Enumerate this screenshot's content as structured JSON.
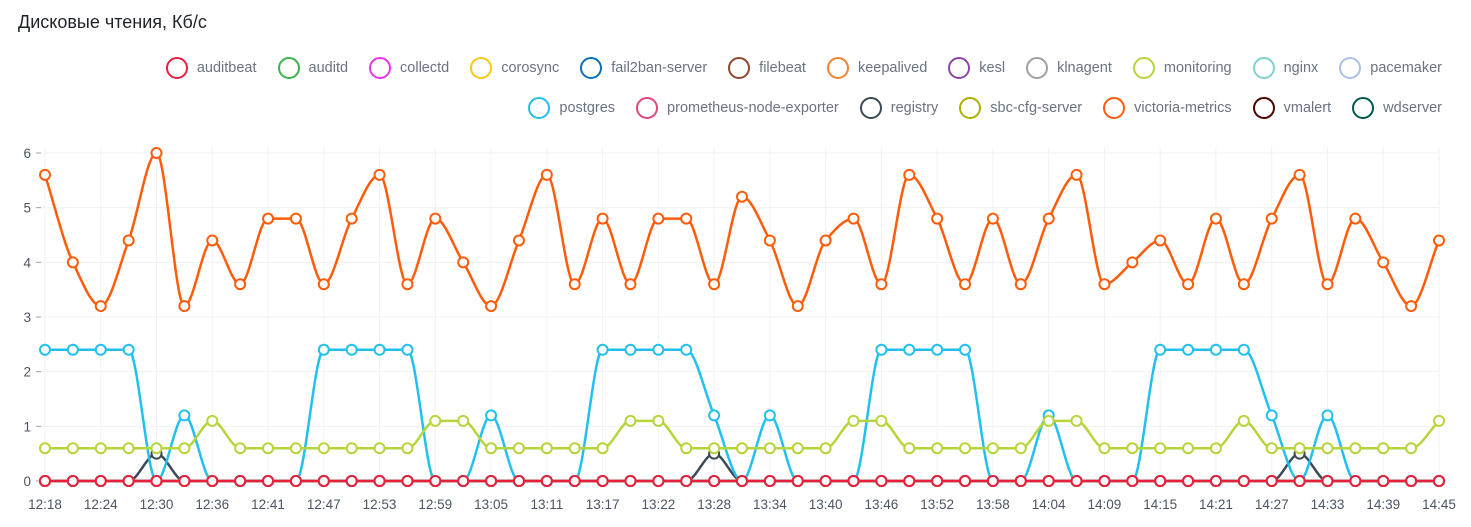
{
  "chart_data": {
    "type": "line",
    "title": "Дисковые чтения, Кб/с",
    "xlabel": "",
    "ylabel": "",
    "ylim": [
      0,
      6
    ],
    "y_ticks": [
      "0",
      "1",
      "2",
      "3",
      "4",
      "5",
      "6"
    ],
    "x_tick_labels": [
      "12:18",
      "12:24",
      "12:30",
      "12:36",
      "12:41",
      "12:47",
      "12:53",
      "12:59",
      "13:05",
      "13:11",
      "13:17",
      "13:22",
      "13:28",
      "13:34",
      "13:40",
      "13:46",
      "13:52",
      "13:58",
      "14:04",
      "14:09",
      "14:15",
      "14:21",
      "14:27",
      "14:33",
      "14:39",
      "14:45"
    ],
    "points_per_series": 51,
    "grid": true,
    "legend_position": "top-right",
    "series": [
      {
        "name": "auditbeat",
        "color": "#e8203c",
        "values": "zeros"
      },
      {
        "name": "auditd",
        "color": "#3cb44b",
        "values": "zeros"
      },
      {
        "name": "collectd",
        "color": "#f032e6",
        "values": "zeros"
      },
      {
        "name": "corosync",
        "color": "#ffc61a",
        "values": "zeros"
      },
      {
        "name": "fail2ban-server",
        "color": "#0a72c4",
        "values": "zeros"
      },
      {
        "name": "filebeat",
        "color": "#8a4b2f",
        "values": "zeros"
      },
      {
        "name": "keepalived",
        "color": "#f58231",
        "values": "zeros"
      },
      {
        "name": "kesl",
        "color": "#8e44ad",
        "values": "zeros"
      },
      {
        "name": "klnagent",
        "color": "#a0a0a0",
        "values": "zeros"
      },
      {
        "name": "monitoring",
        "color": "#b5d53a",
        "values": [
          0.6,
          0.6,
          0.6,
          0.6,
          0.6,
          0.6,
          1.1,
          0.6,
          0.6,
          0.6,
          0.6,
          0.6,
          0.6,
          0.6,
          1.1,
          1.1,
          0.6,
          0.6,
          0.6,
          0.6,
          0.6,
          1.1,
          1.1,
          0.6,
          0.6,
          0.6,
          0.6,
          0.6,
          0.6,
          1.1,
          1.1,
          0.6,
          0.6,
          0.6,
          0.6,
          0.6,
          1.1,
          1.1,
          0.6,
          0.6,
          0.6,
          0.6,
          0.6,
          1.1,
          0.6,
          0.6,
          0.6,
          0.6,
          0.6,
          0.6,
          1.1
        ]
      },
      {
        "name": "nginx",
        "color": "#7fd1cf",
        "values": "zeros"
      },
      {
        "name": "pacemaker",
        "color": "#aac0e4",
        "values": "zeros"
      },
      {
        "name": "postgres",
        "color": "#22c0ee",
        "values": [
          2.4,
          2.4,
          2.4,
          2.4,
          0,
          1.2,
          0,
          0,
          0,
          0,
          2.4,
          2.4,
          2.4,
          2.4,
          0,
          0,
          1.2,
          0,
          0,
          0,
          2.4,
          2.4,
          2.4,
          2.4,
          1.2,
          0,
          1.2,
          0,
          0,
          0,
          2.4,
          2.4,
          2.4,
          2.4,
          0,
          0,
          1.2,
          0,
          0,
          0,
          2.4,
          2.4,
          2.4,
          2.4,
          1.2,
          0,
          1.2,
          0,
          0,
          0,
          0
        ]
      },
      {
        "name": "prometheus-node-exporter",
        "color": "#e6457a",
        "values": "zeros"
      },
      {
        "name": "registry",
        "color": "#3b4a56",
        "values": [
          0,
          0,
          0,
          0,
          0.5,
          0,
          0,
          0,
          0,
          0,
          0,
          0,
          0,
          0,
          0,
          0,
          0,
          0,
          0,
          0,
          0,
          0,
          0,
          0,
          0.5,
          0,
          0,
          0,
          0,
          0,
          0,
          0,
          0,
          0,
          0,
          0,
          0,
          0,
          0,
          0,
          0,
          0,
          0,
          0,
          0,
          0.5,
          0,
          0,
          0,
          0,
          0
        ]
      },
      {
        "name": "sbc-cfg-server",
        "color": "#adb000",
        "values": "zeros"
      },
      {
        "name": "victoria-metrics",
        "color": "#ff5c0a",
        "values": [
          5.6,
          4.0,
          3.2,
          4.4,
          6.0,
          3.2,
          4.4,
          3.6,
          4.8,
          4.8,
          3.6,
          4.8,
          5.6,
          3.6,
          4.8,
          4.0,
          3.2,
          4.4,
          5.6,
          3.6,
          4.8,
          3.6,
          4.8,
          4.8,
          3.6,
          5.2,
          4.4,
          3.2,
          4.4,
          4.8,
          3.6,
          5.6,
          4.8,
          3.6,
          4.8,
          3.6,
          4.8,
          5.6,
          3.6,
          4.0,
          4.4,
          3.6,
          4.8,
          3.6,
          4.8,
          5.6,
          3.6,
          4.8,
          4.0,
          3.2,
          4.4
        ]
      },
      {
        "name": "vmalert",
        "color": "#4e0000",
        "values": "zeros"
      },
      {
        "name": "wdserver",
        "color": "#005a4d",
        "values": "zeros"
      }
    ]
  }
}
